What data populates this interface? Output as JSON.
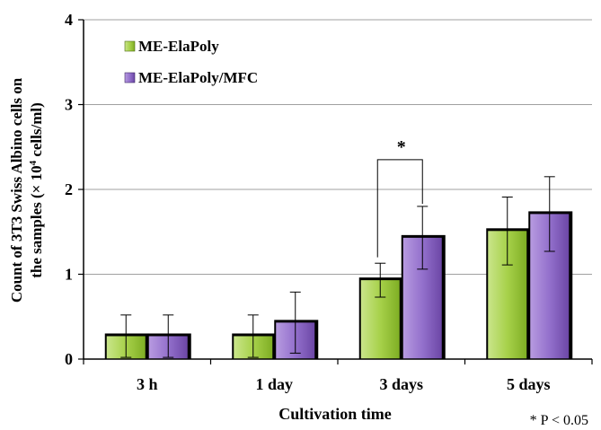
{
  "chart_data": {
    "type": "bar",
    "categories": [
      "3 h",
      "1 day",
      "3 days",
      "5 days"
    ],
    "series": [
      {
        "name": "ME-ElaPoly",
        "values": [
          0.27,
          0.27,
          0.93,
          1.51
        ],
        "errors": [
          0.25,
          0.25,
          0.2,
          0.4
        ]
      },
      {
        "name": "ME-ElaPoly/MFC",
        "values": [
          0.27,
          0.43,
          1.43,
          1.71
        ],
        "errors": [
          0.25,
          0.36,
          0.37,
          0.44
        ]
      }
    ],
    "xlabel": "Cultivation time",
    "ylabel_line1": "Count of 3T3 Swiss Albino cells on",
    "ylabel_line2_prefix": "the samples (× 10",
    "ylabel_line2_sup": "4",
    "ylabel_line2_suffix": " cells/ml)",
    "ylim": [
      0,
      4
    ],
    "yticks": [
      "0",
      "1",
      "2",
      "3",
      "4"
    ],
    "grid": true,
    "legend_position": "top-left",
    "significance": {
      "category": "3 days",
      "marker": "*"
    },
    "footnote": "* P < 0.05",
    "colors": {
      "ME-ElaPoly": "#99cc33",
      "ME-ElaPoly/MFC": "#8a62be",
      "grid": "#a0a0a0",
      "shadow": "#000000"
    }
  }
}
